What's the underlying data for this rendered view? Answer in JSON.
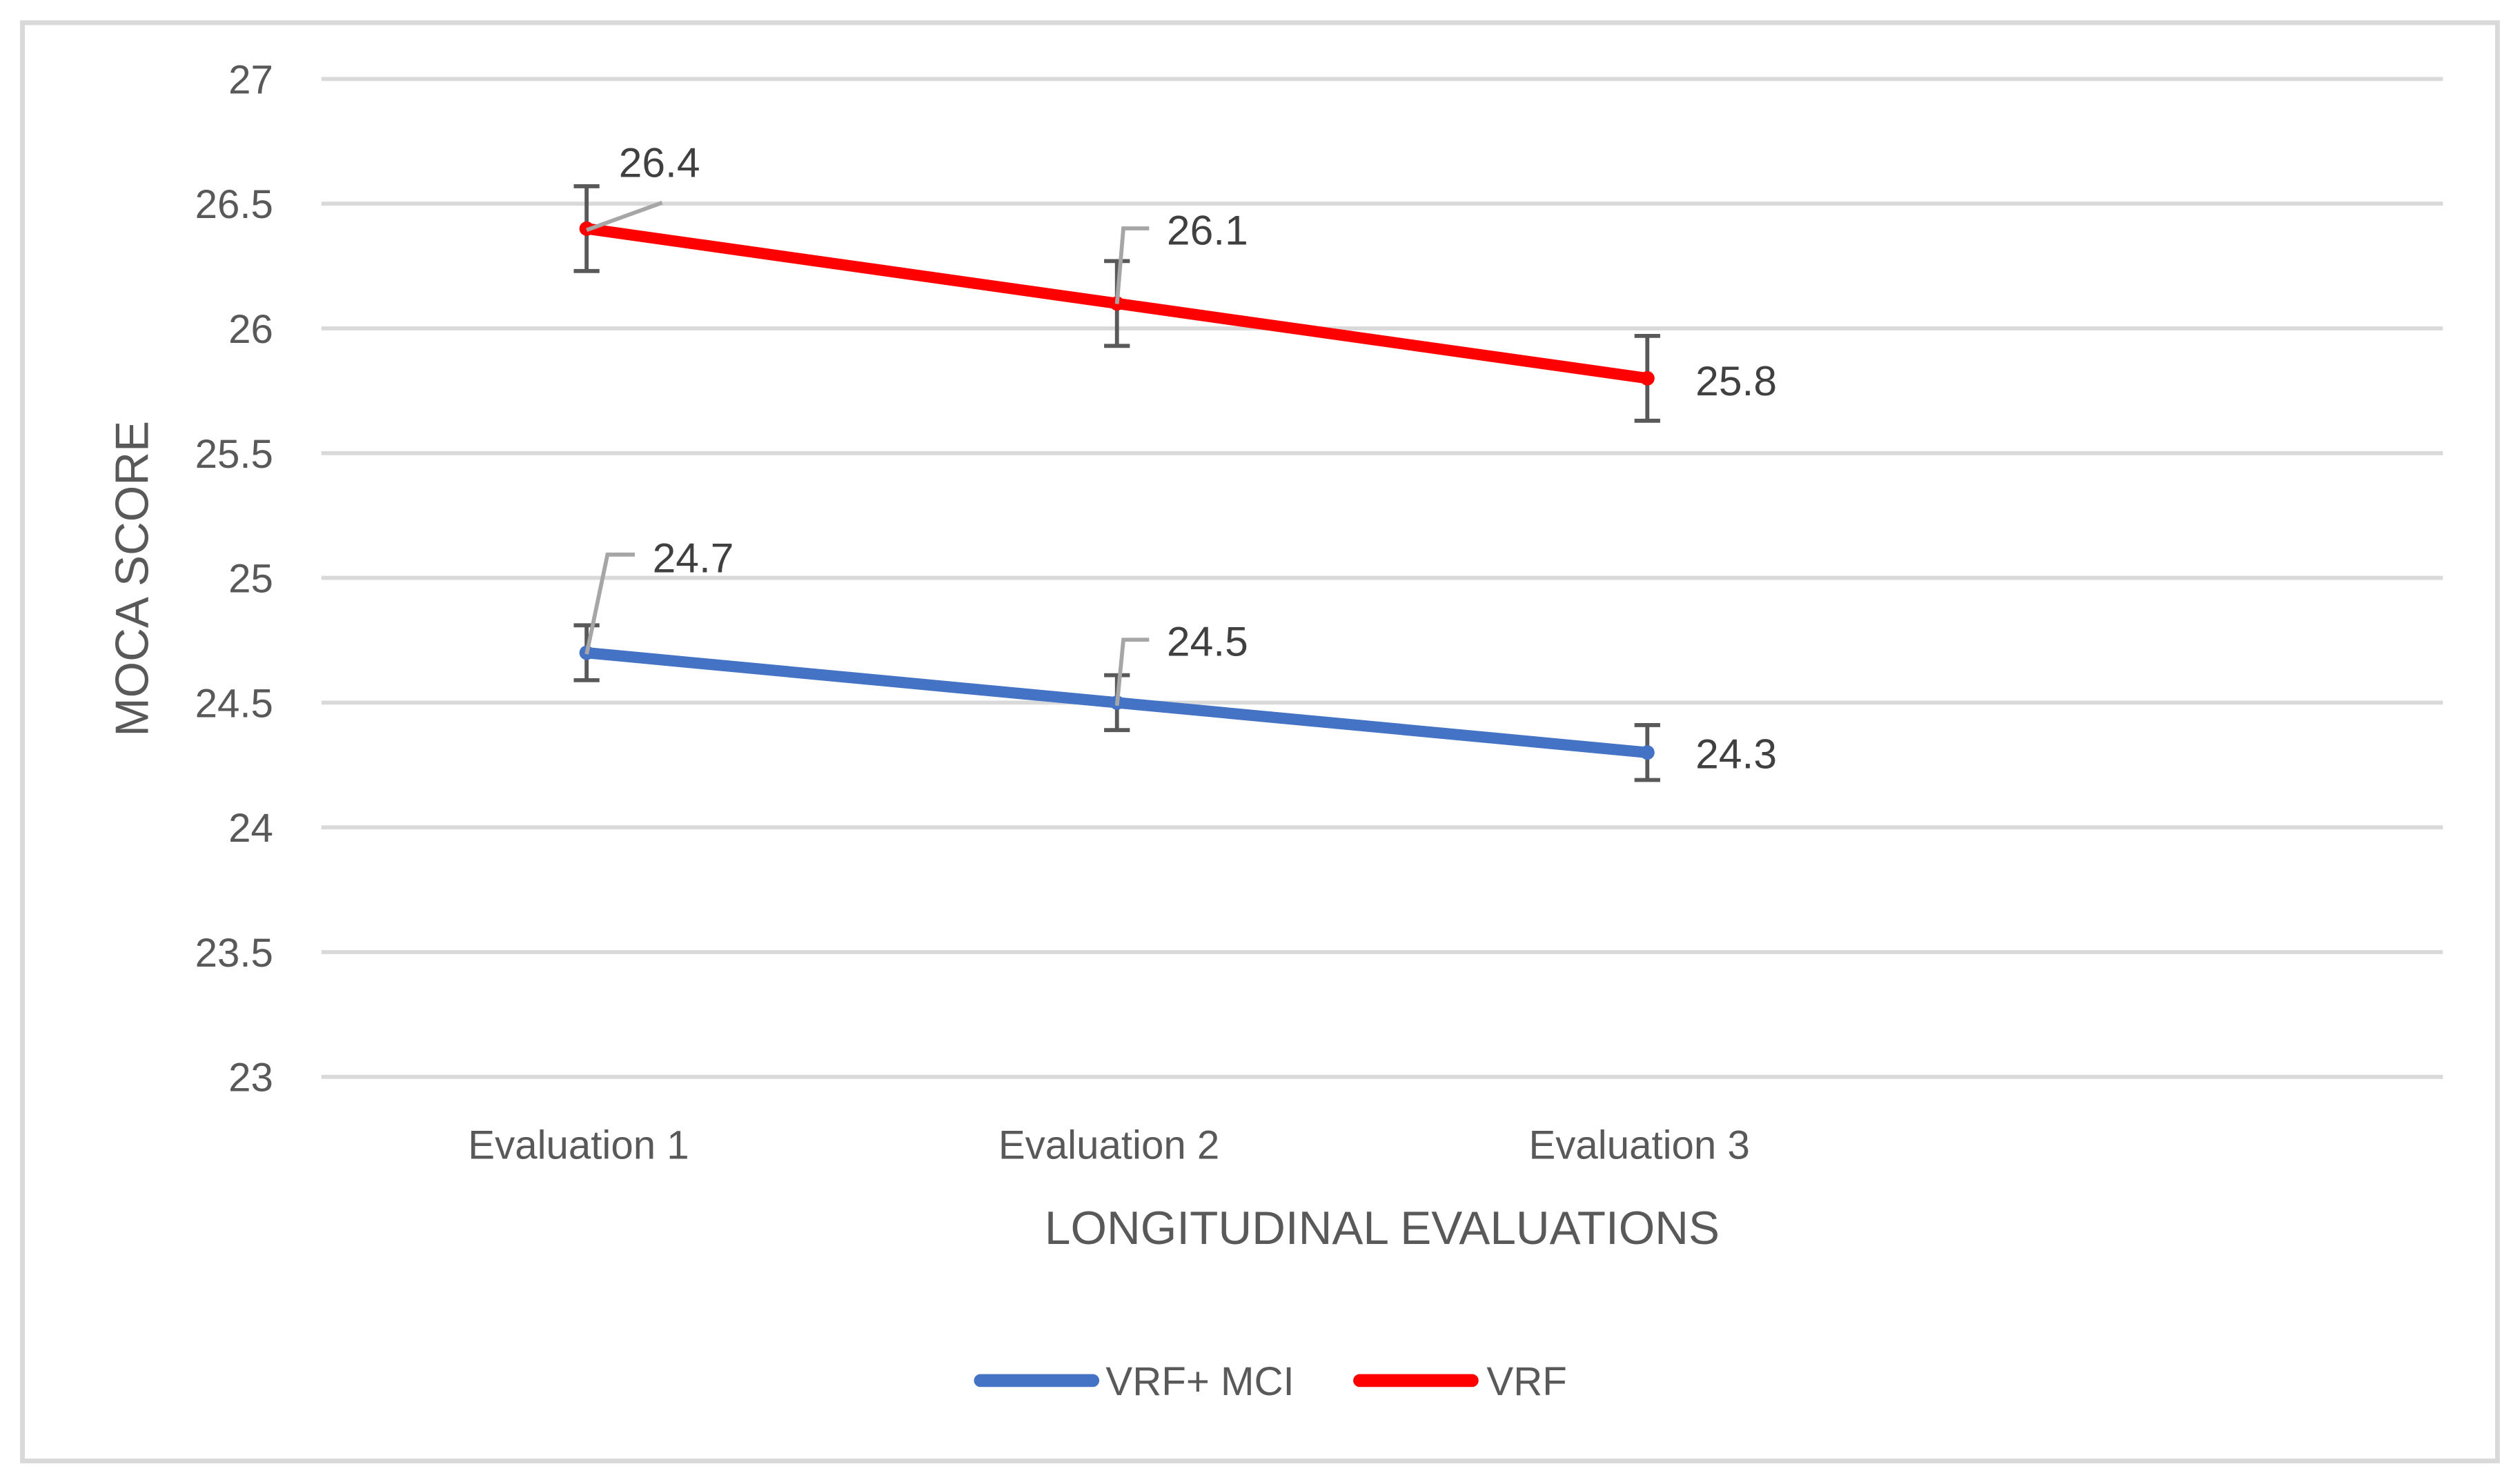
{
  "chart_data": {
    "type": "line",
    "title": "",
    "xlabel": "LONGITUDINAL EVALUATIONS",
    "ylabel": "MOCA SCORE",
    "categories": [
      "Evaluation 1",
      "Evaluation 2",
      "Evaluation 3"
    ],
    "ylim": [
      23,
      27
    ],
    "yticks": [
      23,
      23.5,
      24,
      24.5,
      25,
      25.5,
      26,
      26.5,
      27
    ],
    "ytick_labels": [
      "23",
      "23.5",
      "24",
      "24.5",
      "25",
      "25.5",
      "26",
      "26.5",
      "27"
    ],
    "grid": true,
    "legend_position": "bottom",
    "series": [
      {
        "name": "VRF+ MCI",
        "color": "#4472C4",
        "values": [
          24.7,
          24.5,
          24.3
        ],
        "errors": [
          0.11,
          0.11,
          0.11
        ],
        "labels": [
          "24.7",
          "24.5",
          "24.3"
        ]
      },
      {
        "name": "VRF",
        "color": "#FF0000",
        "values": [
          26.4,
          26.1,
          25.8
        ],
        "errors": [
          0.17,
          0.17,
          0.17
        ],
        "labels": [
          "26.4",
          "26.1",
          "25.8"
        ]
      }
    ],
    "colors": {
      "grid": "#D9D9D9",
      "error_bar": "#595959",
      "leader_line": "#A6A6A6",
      "border": "#D9D9D9"
    }
  }
}
